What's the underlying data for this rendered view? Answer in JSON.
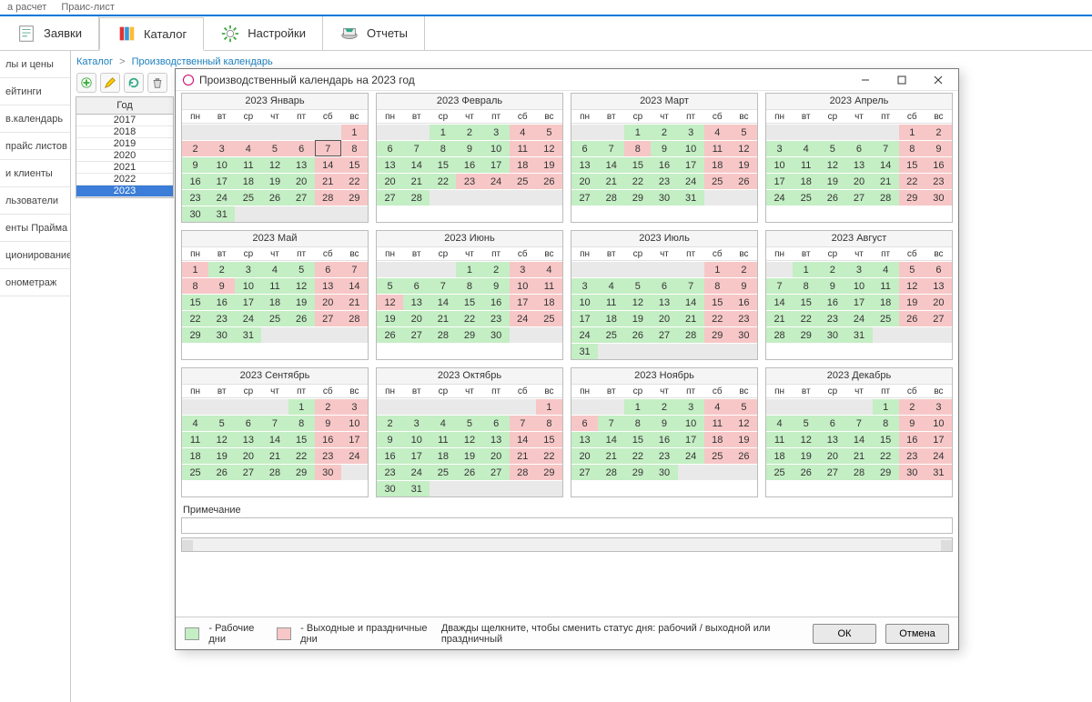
{
  "top_tabs": {
    "left": "а расчет",
    "right": "Праис-лист"
  },
  "main_tabs": [
    {
      "label": "Заявки",
      "icon": "orders"
    },
    {
      "label": "Каталог",
      "icon": "catalog",
      "active": true
    },
    {
      "label": "Настройки",
      "icon": "settings"
    },
    {
      "label": "Отчеты",
      "icon": "reports"
    }
  ],
  "sidebar": [
    "лы и цены",
    "ейтинги",
    "в.календарь",
    "прайс листов",
    "и клиенты",
    "льзователи",
    "енты Прайма",
    "ционирование",
    "онометраж"
  ],
  "breadcrumb": {
    "root": "Каталог",
    "page": "Производственный календарь"
  },
  "year_panel": {
    "header": "Год",
    "years": [
      "2017",
      "2018",
      "2019",
      "2020",
      "2021",
      "2022",
      "2023"
    ],
    "selected": "2023"
  },
  "dialog": {
    "title": "Производственный календарь на 2023 год",
    "weekdays": [
      "пн",
      "вт",
      "ср",
      "чт",
      "пт",
      "сб",
      "вс"
    ],
    "today": {
      "month": 0,
      "day": 7
    },
    "colors": {
      "work": "#c4eec4",
      "holiday": "#f7c7c7",
      "empty": "#e9e9e9"
    },
    "months": [
      {
        "title": "2023 Январь",
        "start": 6,
        "days": 31,
        "holidays": [
          1,
          2,
          3,
          4,
          5,
          6,
          7,
          8,
          14,
          15,
          21,
          22,
          28,
          29
        ]
      },
      {
        "title": "2023 Февраль",
        "start": 2,
        "days": 28,
        "holidays": [
          4,
          5,
          11,
          12,
          18,
          19,
          23,
          24,
          25,
          26
        ]
      },
      {
        "title": "2023 Март",
        "start": 2,
        "days": 31,
        "holidays": [
          4,
          5,
          8,
          11,
          12,
          18,
          19,
          25,
          26
        ]
      },
      {
        "title": "2023 Апрель",
        "start": 5,
        "days": 30,
        "holidays": [
          1,
          2,
          8,
          9,
          15,
          16,
          22,
          23,
          29,
          30
        ]
      },
      {
        "title": "2023 Май",
        "start": 0,
        "days": 31,
        "holidays": [
          1,
          6,
          7,
          8,
          9,
          13,
          14,
          20,
          21,
          27,
          28
        ]
      },
      {
        "title": "2023 Июнь",
        "start": 3,
        "days": 30,
        "holidays": [
          3,
          4,
          10,
          11,
          12,
          17,
          18,
          24,
          25
        ]
      },
      {
        "title": "2023 Июль",
        "start": 5,
        "days": 31,
        "holidays": [
          1,
          2,
          8,
          9,
          15,
          16,
          22,
          23,
          29,
          30
        ]
      },
      {
        "title": "2023 Август",
        "start": 1,
        "days": 31,
        "holidays": [
          5,
          6,
          12,
          13,
          19,
          20,
          26,
          27
        ]
      },
      {
        "title": "2023 Сентябрь",
        "start": 4,
        "days": 30,
        "holidays": [
          2,
          3,
          9,
          10,
          16,
          17,
          23,
          24,
          30
        ]
      },
      {
        "title": "2023 Октябрь",
        "start": 6,
        "days": 31,
        "holidays": [
          1,
          7,
          8,
          14,
          15,
          21,
          22,
          28,
          29
        ]
      },
      {
        "title": "2023 Ноябрь",
        "start": 2,
        "days": 30,
        "holidays": [
          4,
          5,
          6,
          11,
          12,
          18,
          19,
          25,
          26
        ]
      },
      {
        "title": "2023 Декабрь",
        "start": 4,
        "days": 31,
        "holidays": [
          2,
          3,
          9,
          10,
          16,
          17,
          23,
          24,
          30,
          31
        ]
      }
    ],
    "note_label": "Примечание",
    "legend": {
      "work": "- Рабочие дни",
      "holiday": "- Выходные и праздничные дни",
      "hint": "Дважды щелкните, чтобы сменить статус дня: рабочий / выходной или праздничный"
    },
    "buttons": {
      "ok": "ОК",
      "cancel": "Отмена"
    }
  }
}
